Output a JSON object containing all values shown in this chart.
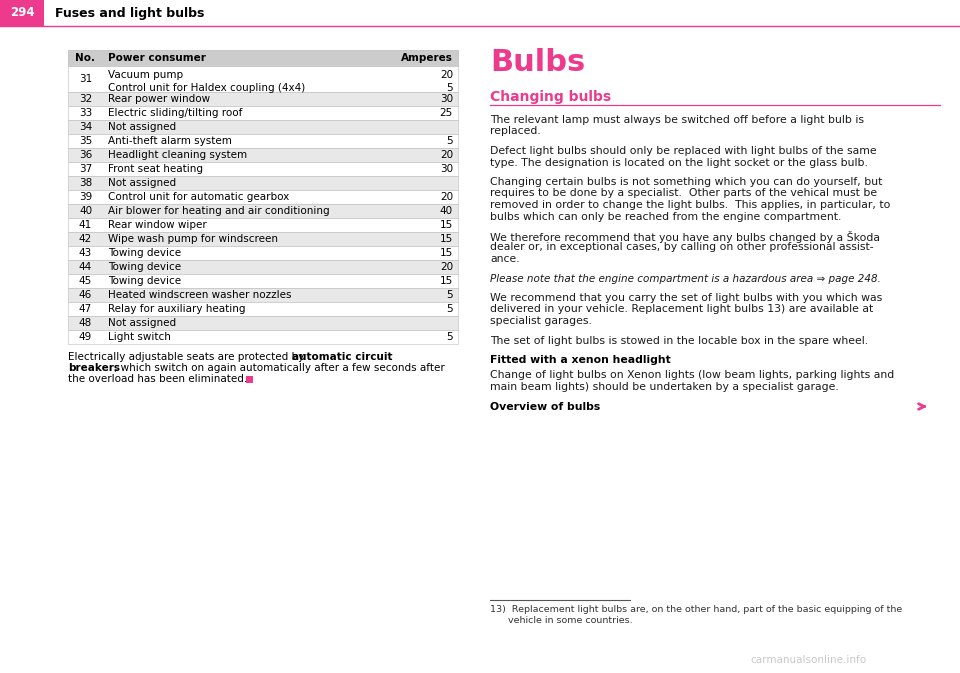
{
  "page_number": "294",
  "header_title": "Fuses and light bulbs",
  "pink": "#EE3A8C",
  "bg_color": "#FFFFFF",
  "table_header_bg": "#CCCCCC",
  "table_alt_bg": "#E8E8E8",
  "table_white_bg": "#FFFFFF",
  "table_border_color": "#BBBBBB",
  "table_rows": [
    {
      "no": "31",
      "consumer": "Vacuum pump\nControl unit for Haldex coupling (4x4)",
      "amperes": "20\n5",
      "shaded": false
    },
    {
      "no": "32",
      "consumer": "Rear power window",
      "amperes": "30",
      "shaded": true
    },
    {
      "no": "33",
      "consumer": "Electric sliding/tilting roof",
      "amperes": "25",
      "shaded": false
    },
    {
      "no": "34",
      "consumer": "Not assigned",
      "amperes": "",
      "shaded": true
    },
    {
      "no": "35",
      "consumer": "Anti-theft alarm system",
      "amperes": "5",
      "shaded": false
    },
    {
      "no": "36",
      "consumer": "Headlight cleaning system",
      "amperes": "20",
      "shaded": true
    },
    {
      "no": "37",
      "consumer": "Front seat heating",
      "amperes": "30",
      "shaded": false
    },
    {
      "no": "38",
      "consumer": "Not assigned",
      "amperes": "",
      "shaded": true
    },
    {
      "no": "39",
      "consumer": "Control unit for automatic gearbox",
      "amperes": "20",
      "shaded": false
    },
    {
      "no": "40",
      "consumer": "Air blower for heating and air conditioning",
      "amperes": "40",
      "shaded": true
    },
    {
      "no": "41",
      "consumer": "Rear window wiper",
      "amperes": "15",
      "shaded": false
    },
    {
      "no": "42",
      "consumer": "Wipe wash pump for windscreen",
      "amperes": "15",
      "shaded": true
    },
    {
      "no": "43",
      "consumer": "Towing device",
      "amperes": "15",
      "shaded": false
    },
    {
      "no": "44",
      "consumer": "Towing device",
      "amperes": "20",
      "shaded": true
    },
    {
      "no": "45",
      "consumer": "Towing device",
      "amperes": "15",
      "shaded": false
    },
    {
      "no": "46",
      "consumer": "Heated windscreen washer nozzles",
      "amperes": "5",
      "shaded": true
    },
    {
      "no": "47",
      "consumer": "Relay for auxiliary heating",
      "amperes": "5",
      "shaded": false
    },
    {
      "no": "48",
      "consumer": "Not assigned",
      "amperes": "",
      "shaded": true
    },
    {
      "no": "49",
      "consumer": "Light switch",
      "amperes": "5",
      "shaded": false
    }
  ],
  "right_paragraphs": [
    "The relevant lamp must always be switched off before a light bulb is\nreplaced.",
    "Defect light bulbs should only be replaced with light bulbs of the same\ntype. The designation is located on the light socket or the glass bulb.",
    "Changing certain bulbs is not something which you can do yourself, but\nrequires to be done by a specialist.  Other parts of the vehical must be\nremoved in order to change the light bulbs.  This applies, in particular, to\nbulbs which can only be reached from the engine compartment.",
    "We therefore recommend that you have any bulbs changed by a Škoda\ndealer or, in exceptional cases, by calling on other professional assist-\nance.",
    "Please note that the engine compartment is a hazardous area ⇒ page 248.",
    "We recommend that you carry the set of light bulbs with you which was\ndelivered in your vehicle. Replacement light bulbs 13) are available at\nspecialist garages.",
    "The set of light bulbs is stowed in the locable box in the spare wheel."
  ],
  "footnote_text_a": "13)  Replacement light bulbs are, on the other hand, part of the basic equipping of the",
  "footnote_text_b": "      vehicle in some countries.",
  "watermark": "carmanualsonline.info"
}
